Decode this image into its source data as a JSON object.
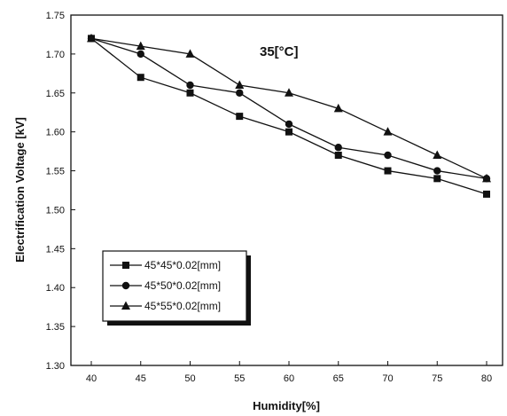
{
  "chart_data": {
    "type": "line",
    "xlabel": "Humidity[%]",
    "ylabel": "Electrification Voltage [kV]",
    "annotation": "35[°C]",
    "xlim": [
      40,
      80
    ],
    "ylim": [
      1.3,
      1.75
    ],
    "xticks": [
      "40",
      "45",
      "50",
      "55",
      "60",
      "65",
      "70",
      "75",
      "80"
    ],
    "yticks": [
      "1.30",
      "1.35",
      "1.40",
      "1.45",
      "1.50",
      "1.55",
      "1.60",
      "1.65",
      "1.70",
      "1.75"
    ],
    "grid": false,
    "legend_position": "bottom-left",
    "x": [
      40,
      45,
      50,
      55,
      60,
      65,
      70,
      75,
      80
    ],
    "series": [
      {
        "name": "45*45*0.02[mm]",
        "marker": "square",
        "values": [
          1.72,
          1.67,
          1.65,
          1.62,
          1.6,
          1.57,
          1.55,
          1.54,
          1.52
        ]
      },
      {
        "name": "45*50*0.02[mm]",
        "marker": "circle",
        "values": [
          1.72,
          1.7,
          1.66,
          1.65,
          1.61,
          1.58,
          1.57,
          1.55,
          1.54
        ]
      },
      {
        "name": "45*55*0.02[mm]",
        "marker": "triangle",
        "values": [
          1.72,
          1.71,
          1.7,
          1.66,
          1.65,
          1.63,
          1.6,
          1.57,
          1.54
        ]
      }
    ]
  }
}
